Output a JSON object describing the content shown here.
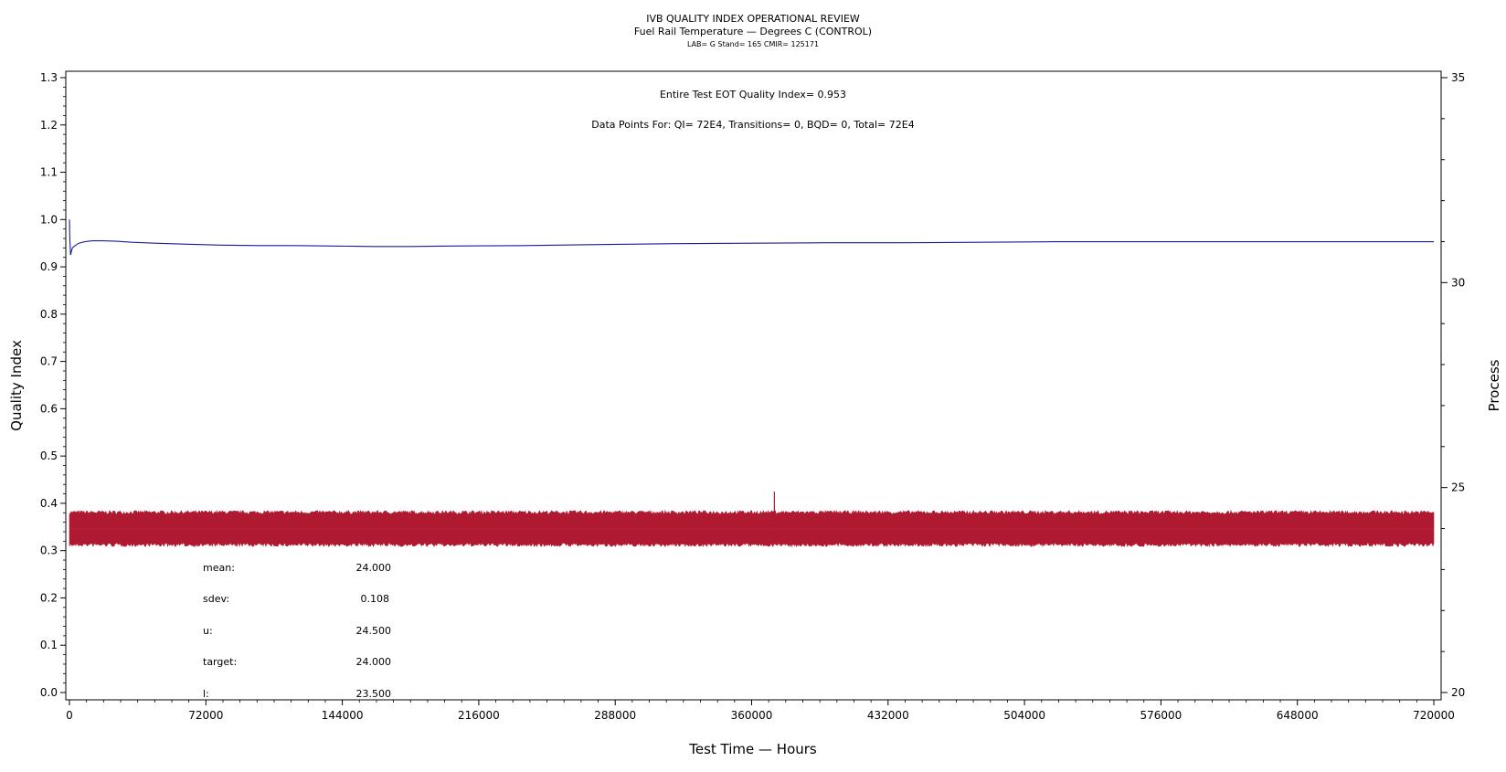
{
  "chart_data": {
    "type": "line",
    "title": "IVB QUALITY INDEX OPERATIONAL REVIEW",
    "subtitle": "Fuel Rail Temperature — Degrees C (CONTROL)",
    "subtitle2": "LAB= G Stand= 165 CMIR= 125171",
    "xlabel": "Test Time — Hours",
    "ylabel": "Quality Index",
    "y2label": "Process",
    "xlim": [
      0,
      720000
    ],
    "ylim": [
      0.0,
      1.3
    ],
    "y2lim": [
      20,
      35
    ],
    "x_ticks": [
      "0",
      "72000",
      "144000",
      "216000",
      "288000",
      "360000",
      "432000",
      "504000",
      "576000",
      "648000",
      "720000"
    ],
    "y_ticks": [
      "0.0",
      "0.1",
      "0.2",
      "0.3",
      "0.4",
      "0.5",
      "0.6",
      "0.7",
      "0.8",
      "0.9",
      "1.0",
      "1.1",
      "1.2",
      "1.3"
    ],
    "y2_ticks": [
      "20",
      "25",
      "30",
      "35"
    ],
    "annotations": {
      "qi_line": "Entire Test EOT Quality Index=   0.953",
      "points_line": "Data Points For: QI=  72E4, Transitions=     0, BQD=     0, Total=  72E4"
    },
    "stats": [
      {
        "label": "mean:",
        "value": "24.000"
      },
      {
        "label": "sdev:",
        "value": "0.108"
      },
      {
        "label": "u:",
        "value": "24.500"
      },
      {
        "label": "target:",
        "value": "24.000"
      },
      {
        "label": "l:",
        "value": "23.500"
      }
    ],
    "series": [
      {
        "axis": "left",
        "color": "#1a1aa0",
        "x": [
          0,
          200,
          600,
          1500,
          3000,
          5000,
          8000,
          12000,
          18000,
          25000,
          33000,
          45000,
          60000,
          80000,
          100000,
          120000,
          140000,
          160000,
          180000,
          200000,
          240000,
          280000,
          320000,
          360000,
          400000,
          440000,
          480000,
          520000,
          560000,
          600000,
          640000,
          680000,
          720000
        ],
        "y": [
          1.0,
          0.96,
          0.925,
          0.94,
          0.945,
          0.95,
          0.953,
          0.955,
          0.955,
          0.954,
          0.952,
          0.95,
          0.948,
          0.946,
          0.945,
          0.945,
          0.944,
          0.943,
          0.943,
          0.944,
          0.945,
          0.947,
          0.949,
          0.95,
          0.951,
          0.951,
          0.952,
          0.953,
          0.953,
          0.953,
          0.953,
          0.953,
          0.953
        ]
      },
      {
        "axis": "right",
        "color": "#b01a30",
        "mean": 24.0,
        "band": [
          23.65,
          24.35
        ],
        "spike": {
          "x": 372000,
          "y": 24.9
        }
      }
    ]
  }
}
